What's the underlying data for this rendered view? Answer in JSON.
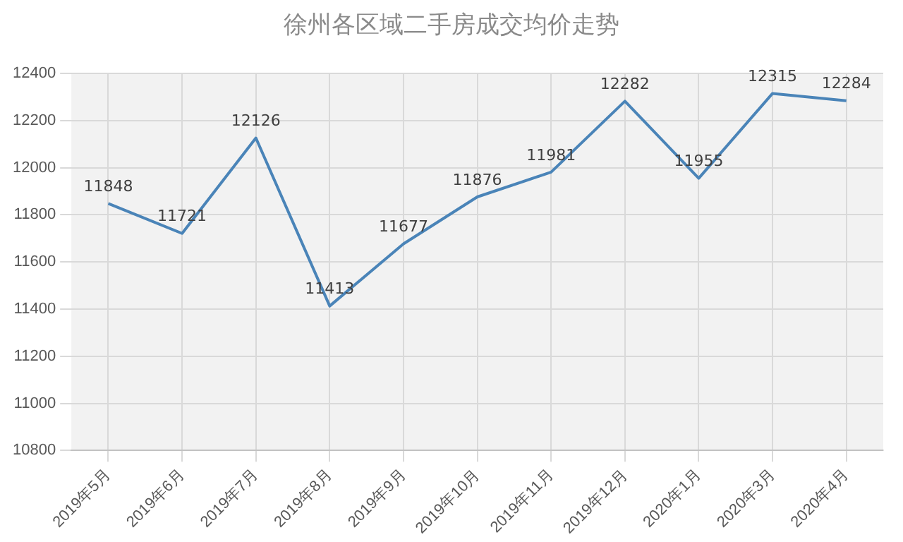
{
  "chart_data": {
    "type": "line",
    "title": "徐州各区域二手房成交均价走势",
    "categories": [
      "2019年5月",
      "2019年6月",
      "2019年7月",
      "2019年8月",
      "2019年9月",
      "2019年10月",
      "2019年11月",
      "2019年12月",
      "2020年1月",
      "2020年3月",
      "2020年4月"
    ],
    "series": [
      {
        "color": "#4a84b8",
        "values": [
          11848,
          11721,
          12126,
          11413,
          11677,
          11876,
          11981,
          12282,
          11955,
          12315,
          12284
        ]
      }
    ],
    "ylim": [
      10800,
      12400
    ],
    "yticks": [
      10800,
      11000,
      11200,
      11400,
      11600,
      11800,
      12000,
      12200,
      12400
    ],
    "grid": true,
    "data_labels": true,
    "marker": "none",
    "line_style": "solid"
  }
}
